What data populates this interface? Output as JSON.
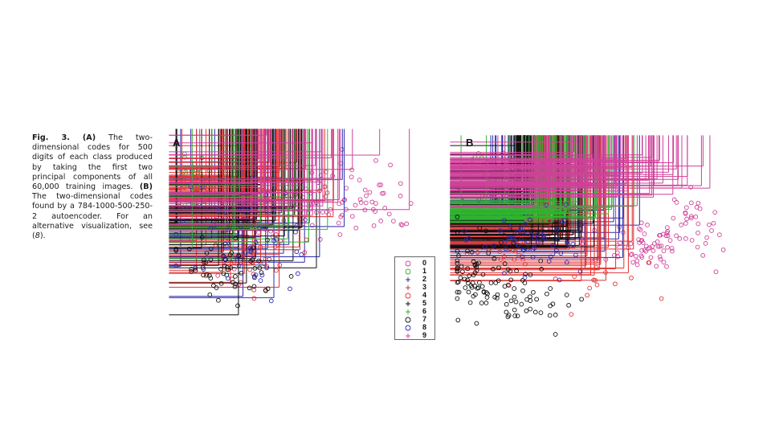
{
  "caption": {
    "fig_label": "Fig. 3.",
    "part_a_open": "(",
    "part_a_letter": "A",
    "part_a_close": ")",
    "part_a_text": " The two-dimensional codes for 500 digits of each class produced by taking the first two principal components of all 60,000 training images. ",
    "part_b_letter": "(B)",
    "part_b_text": " The two-dimensional codes found by a 784-1000-500-250-2 autoencoder. For an alternative visualization, see (",
    "ref": "8",
    "end": ")."
  },
  "panels": [
    {
      "letter": "A"
    },
    {
      "letter": "B"
    }
  ],
  "legend": [
    {
      "label": "0",
      "marker": "circle",
      "color": "#d0409a"
    },
    {
      "label": "1",
      "marker": "circle",
      "color": "#2fb52f"
    },
    {
      "label": "2",
      "marker": "plus",
      "color": "#2a2ab0"
    },
    {
      "label": "3",
      "marker": "plus",
      "color": "#e03030"
    },
    {
      "label": "4",
      "marker": "circle",
      "color": "#e03030"
    },
    {
      "label": "5",
      "marker": "plus",
      "color": "#111111"
    },
    {
      "label": "6",
      "marker": "plus",
      "color": "#2fb52f"
    },
    {
      "label": "7",
      "marker": "circle",
      "color": "#111111"
    },
    {
      "label": "8",
      "marker": "circle",
      "color": "#2a2ab0"
    },
    {
      "label": "9",
      "marker": "plus",
      "color": "#d0409a"
    }
  ],
  "chart_data": [
    {
      "type": "scatter",
      "title": "A",
      "xlabel": "",
      "ylabel": "",
      "series": [
        {
          "name": "0",
          "clusters": [
            {
              "cx": 0.7,
              "cy": 0.35,
              "sx": 0.13,
              "sy": 0.1,
              "n": 70
            },
            {
              "cx": 0.35,
              "cy": 0.45,
              "sx": 0.15,
              "sy": 0.15,
              "n": 30
            }
          ]
        },
        {
          "name": "1",
          "clusters": [
            {
              "cx": 0.08,
              "cy": 0.32,
              "sx": 0.035,
              "sy": 0.09,
              "n": 90
            }
          ]
        },
        {
          "name": "2",
          "clusters": [
            {
              "cx": 0.28,
              "cy": 0.55,
              "sx": 0.14,
              "sy": 0.15,
              "n": 35
            }
          ]
        },
        {
          "name": "3",
          "clusters": [
            {
              "cx": 0.38,
              "cy": 0.28,
              "sx": 0.12,
              "sy": 0.1,
              "n": 50
            },
            {
              "cx": 0.3,
              "cy": 0.62,
              "sx": 0.12,
              "sy": 0.1,
              "n": 25
            }
          ]
        },
        {
          "name": "4",
          "clusters": [
            {
              "cx": 0.28,
              "cy": 0.62,
              "sx": 0.13,
              "sy": 0.12,
              "n": 40
            }
          ]
        },
        {
          "name": "5",
          "clusters": [
            {
              "cx": 0.32,
              "cy": 0.5,
              "sx": 0.15,
              "sy": 0.15,
              "n": 50
            }
          ]
        },
        {
          "name": "6",
          "clusters": [
            {
              "cx": 0.32,
              "cy": 0.4,
              "sx": 0.18,
              "sy": 0.15,
              "n": 15
            }
          ]
        },
        {
          "name": "7",
          "clusters": [
            {
              "cx": 0.22,
              "cy": 0.72,
              "sx": 0.1,
              "sy": 0.09,
              "n": 60
            }
          ]
        },
        {
          "name": "8",
          "clusters": [
            {
              "cx": 0.3,
              "cy": 0.58,
              "sx": 0.14,
              "sy": 0.14,
              "n": 55
            }
          ]
        },
        {
          "name": "9",
          "clusters": [
            {
              "cx": 0.45,
              "cy": 0.32,
              "sx": 0.15,
              "sy": 0.12,
              "n": 45
            }
          ]
        }
      ]
    },
    {
      "type": "scatter",
      "title": "B",
      "xlabel": "",
      "ylabel": "",
      "series": [
        {
          "name": "0",
          "clusters": [
            {
              "cx": 0.72,
              "cy": 0.52,
              "sx": 0.12,
              "sy": 0.07,
              "n": 80
            },
            {
              "cx": 0.88,
              "cy": 0.38,
              "sx": 0.05,
              "sy": 0.05,
              "n": 20
            }
          ]
        },
        {
          "name": "1",
          "clusters": [
            {
              "cx": 0.16,
              "cy": 0.22,
              "sx": 0.05,
              "sy": 0.08,
              "n": 90
            }
          ]
        },
        {
          "name": "2",
          "clusters": [
            {
              "cx": 0.25,
              "cy": 0.38,
              "sx": 0.06,
              "sy": 0.04,
              "n": 60
            },
            {
              "cx": 0.45,
              "cy": 0.48,
              "sx": 0.12,
              "sy": 0.08,
              "n": 20
            }
          ]
        },
        {
          "name": "3",
          "clusters": [
            {
              "cx": 0.36,
              "cy": 0.44,
              "sx": 0.06,
              "sy": 0.05,
              "n": 60
            },
            {
              "cx": 0.55,
              "cy": 0.62,
              "sx": 0.08,
              "sy": 0.08,
              "n": 25
            }
          ]
        },
        {
          "name": "4",
          "clusters": [
            {
              "cx": 0.16,
              "cy": 0.5,
              "sx": 0.06,
              "sy": 0.06,
              "n": 50
            },
            {
              "cx": 0.5,
              "cy": 0.7,
              "sx": 0.1,
              "sy": 0.08,
              "n": 15
            }
          ]
        },
        {
          "name": "5",
          "clusters": [
            {
              "cx": 0.25,
              "cy": 0.28,
              "sx": 0.025,
              "sy": 0.08,
              "n": 45
            },
            {
              "cx": 0.42,
              "cy": 0.48,
              "sx": 0.08,
              "sy": 0.04,
              "n": 30
            }
          ]
        },
        {
          "name": "6",
          "clusters": [
            {
              "cx": 0.4,
              "cy": 0.36,
              "sx": 0.1,
              "sy": 0.025,
              "n": 60
            }
          ]
        },
        {
          "name": "7",
          "clusters": [
            {
              "cx": 0.1,
              "cy": 0.68,
              "sx": 0.08,
              "sy": 0.1,
              "n": 90
            },
            {
              "cx": 0.28,
              "cy": 0.82,
              "sx": 0.08,
              "sy": 0.06,
              "n": 30
            }
          ]
        },
        {
          "name": "8",
          "clusters": [
            {
              "cx": 0.3,
              "cy": 0.5,
              "sx": 0.1,
              "sy": 0.07,
              "n": 60
            }
          ]
        },
        {
          "name": "9",
          "clusters": [
            {
              "cx": 0.5,
              "cy": 0.16,
              "sx": 0.14,
              "sy": 0.07,
              "n": 75
            },
            {
              "cx": 0.72,
              "cy": 0.2,
              "sx": 0.1,
              "sy": 0.05,
              "n": 25
            }
          ]
        }
      ]
    }
  ]
}
